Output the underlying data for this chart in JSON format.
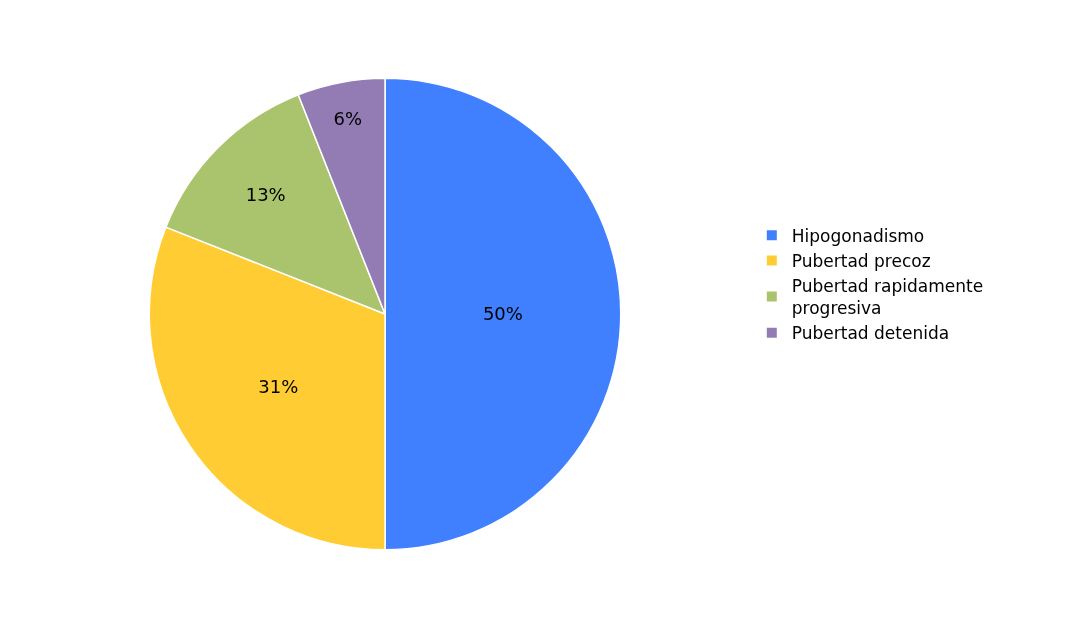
{
  "chart_data": {
    "type": "pie",
    "categories": [
      "Hipogonadismo",
      "Pubertad precoz",
      "Pubertad rapidamente progresiva",
      "Pubertad detenida"
    ],
    "values": [
      50,
      31,
      13,
      6
    ],
    "value_labels": [
      "50%",
      "31%",
      "13%",
      "6%"
    ],
    "colors": [
      "#4080ff",
      "#ffcd33",
      "#a9c46c",
      "#937cb3"
    ],
    "legend": "right"
  }
}
